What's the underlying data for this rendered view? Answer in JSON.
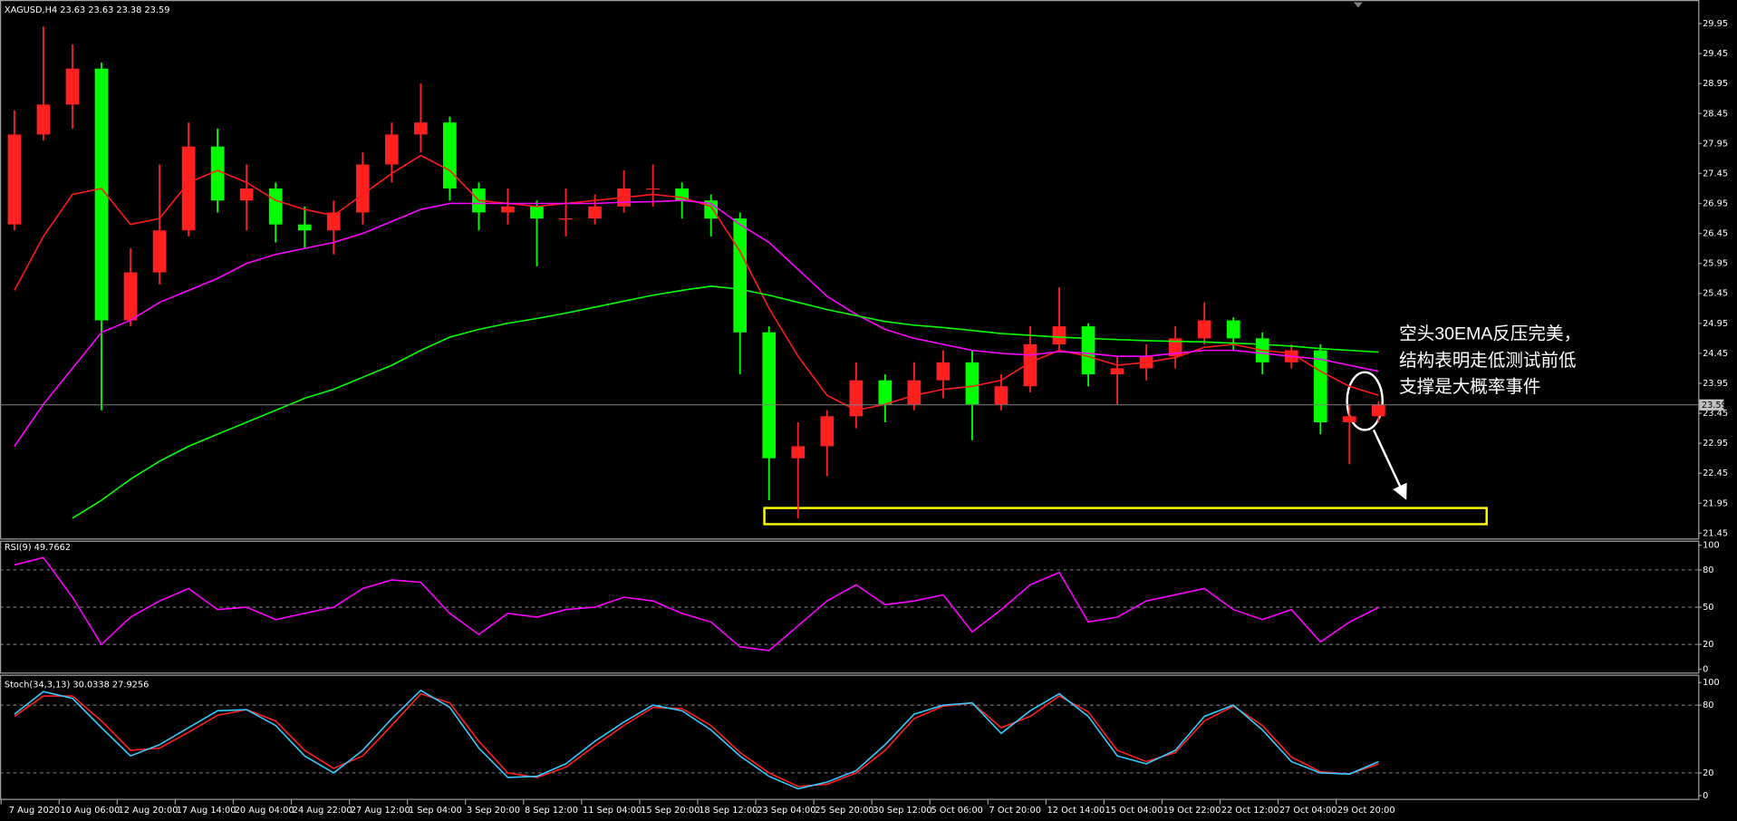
{
  "chart_data": [
    {
      "type": "candlestick",
      "title": "XAGUSD,H4  23.63 23.63 23.38 23.59",
      "categories": [
        "7 Aug 2020",
        null,
        "10 Aug 06:00",
        null,
        "12 Aug 20:00",
        null,
        "17 Aug 14:00",
        null,
        "20 Aug 04:00",
        null,
        "24 Aug 22:00",
        null,
        "27 Aug 12:00",
        null,
        "1 Sep 04:00",
        null,
        "3 Sep 20:00",
        null,
        "8 Sep 12:00",
        null,
        "11 Sep 04:00",
        null,
        "15 Sep 20:00",
        null,
        "18 Sep 12:00",
        null,
        "23 Sep 04:00",
        null,
        "25 Sep 20:00",
        null,
        "30 Sep 12:00",
        null,
        "5 Oct 06:00",
        null,
        "7 Oct 20:00",
        null,
        "12 Oct 14:00",
        null,
        "15 Oct 04:00",
        null,
        "19 Oct 22:00",
        null,
        "22 Oct 12:00",
        null,
        "27 Oct 04:00",
        null,
        "29 Oct 20:00",
        null
      ],
      "ohlc": [
        [
          26.6,
          28.5,
          26.5,
          28.1
        ],
        [
          28.1,
          29.9,
          28.0,
          28.6
        ],
        [
          28.6,
          29.6,
          28.2,
          29.2
        ],
        [
          29.2,
          29.3,
          23.5,
          25.0
        ],
        [
          25.0,
          26.2,
          24.9,
          25.8
        ],
        [
          25.8,
          27.6,
          25.6,
          26.5
        ],
        [
          26.5,
          28.3,
          26.4,
          27.9
        ],
        [
          27.9,
          28.2,
          26.8,
          27.0
        ],
        [
          27.0,
          27.6,
          26.5,
          27.2
        ],
        [
          27.2,
          27.3,
          26.3,
          26.6
        ],
        [
          26.6,
          26.9,
          26.2,
          26.5
        ],
        [
          26.5,
          27.0,
          26.1,
          26.8
        ],
        [
          26.8,
          27.8,
          26.6,
          27.6
        ],
        [
          27.6,
          28.3,
          27.3,
          28.1
        ],
        [
          28.1,
          28.95,
          27.8,
          28.3
        ],
        [
          28.3,
          28.4,
          27.0,
          27.2
        ],
        [
          27.2,
          27.3,
          26.5,
          26.8
        ],
        [
          26.8,
          27.2,
          26.6,
          26.9
        ],
        [
          26.9,
          27.0,
          25.9,
          26.7
        ],
        [
          26.7,
          27.2,
          26.4,
          26.7
        ],
        [
          26.7,
          27.1,
          26.6,
          26.9
        ],
        [
          26.9,
          27.5,
          26.8,
          27.2
        ],
        [
          27.2,
          27.6,
          26.9,
          27.2
        ],
        [
          27.2,
          27.3,
          26.7,
          27.0
        ],
        [
          27.0,
          27.1,
          26.4,
          26.7
        ],
        [
          26.7,
          26.8,
          24.1,
          24.8
        ],
        [
          24.8,
          24.9,
          22.0,
          22.7
        ],
        [
          22.7,
          23.3,
          21.7,
          22.9
        ],
        [
          22.9,
          23.5,
          22.4,
          23.4
        ],
        [
          23.4,
          24.3,
          23.2,
          24.0
        ],
        [
          24.0,
          24.1,
          23.3,
          23.6
        ],
        [
          23.6,
          24.3,
          23.5,
          24.0
        ],
        [
          24.0,
          24.5,
          23.7,
          24.3
        ],
        [
          24.3,
          24.5,
          23.0,
          23.6
        ],
        [
          23.6,
          24.1,
          23.5,
          23.9
        ],
        [
          23.9,
          24.9,
          23.8,
          24.6
        ],
        [
          24.6,
          25.55,
          24.5,
          24.9
        ],
        [
          24.9,
          24.95,
          23.9,
          24.1
        ],
        [
          24.1,
          24.4,
          23.6,
          24.2
        ],
        [
          24.2,
          24.6,
          24.0,
          24.4
        ],
        [
          24.4,
          24.9,
          24.2,
          24.7
        ],
        [
          24.7,
          25.3,
          24.6,
          25.0
        ],
        [
          25.0,
          25.05,
          24.5,
          24.7
        ],
        [
          24.7,
          24.8,
          24.1,
          24.3
        ],
        [
          24.3,
          24.6,
          24.2,
          24.5
        ],
        [
          24.5,
          24.6,
          23.1,
          23.3
        ],
        [
          23.3,
          23.6,
          22.6,
          23.4
        ],
        [
          23.4,
          23.65,
          23.3,
          23.59
        ]
      ],
      "up_color": "#ff2020",
      "down_color": "#00ff00",
      "series": [
        {
          "color": "#ff1a1a",
          "values": [
            25.5,
            26.4,
            27.1,
            27.2,
            26.6,
            26.7,
            27.3,
            27.5,
            27.3,
            27.0,
            26.85,
            26.75,
            27.1,
            27.45,
            27.75,
            27.5,
            27.0,
            26.95,
            26.9,
            26.95,
            27.0,
            27.05,
            27.1,
            27.05,
            26.9,
            26.15,
            25.2,
            24.4,
            23.75,
            23.5,
            23.6,
            23.75,
            23.85,
            23.9,
            24.0,
            24.3,
            24.5,
            24.4,
            24.25,
            24.3,
            24.38,
            24.55,
            24.6,
            24.5,
            24.45,
            24.15,
            23.9,
            23.75
          ]
        },
        {
          "color": "#ff00ff",
          "values": [
            22.9,
            23.6,
            24.2,
            24.8,
            25.0,
            25.3,
            25.5,
            25.7,
            25.95,
            26.1,
            26.2,
            26.3,
            26.45,
            26.65,
            26.85,
            26.95,
            26.95,
            26.95,
            26.95,
            26.95,
            26.95,
            26.97,
            26.98,
            27.0,
            26.95,
            26.6,
            26.3,
            25.85,
            25.4,
            25.1,
            24.85,
            24.7,
            24.6,
            24.5,
            24.45,
            24.42,
            24.48,
            24.45,
            24.4,
            24.4,
            24.45,
            24.5,
            24.5,
            24.45,
            24.4,
            24.35,
            24.25,
            24.15
          ]
        },
        {
          "color": "#00ff00",
          "values": [
            null,
            null,
            21.7,
            22.0,
            22.35,
            22.65,
            22.9,
            23.1,
            23.3,
            23.5,
            23.7,
            23.85,
            24.05,
            24.25,
            24.5,
            24.72,
            24.85,
            24.95,
            25.03,
            25.12,
            25.22,
            25.32,
            25.42,
            25.5,
            25.57,
            25.52,
            25.42,
            25.3,
            25.18,
            25.08,
            24.98,
            24.92,
            24.88,
            24.83,
            24.78,
            24.75,
            24.72,
            24.7,
            24.68,
            24.66,
            24.65,
            24.64,
            24.62,
            24.6,
            24.57,
            24.53,
            24.5,
            24.47
          ]
        }
      ],
      "current_price": 23.59,
      "support_zone": [
        21.6,
        21.87
      ],
      "annotation": [
        "空头30EMA反压完美，",
        "结构表明走低测试前低",
        "支撑是大概率事件"
      ],
      "ylim": [
        21.38,
        30.27
      ],
      "yticks": [
        21.45,
        21.95,
        22.45,
        22.95,
        23.45,
        23.95,
        24.45,
        24.95,
        25.45,
        25.95,
        26.45,
        26.95,
        27.45,
        27.95,
        28.45,
        28.95,
        29.45,
        29.95
      ]
    },
    {
      "type": "line",
      "title": "RSI(9) 49.7662",
      "series": [
        {
          "color": "#ff00ff",
          "values": [
            84,
            90,
            58,
            20,
            42,
            55,
            65,
            48,
            50,
            40,
            45,
            50,
            65,
            72,
            70,
            45,
            28,
            45,
            42,
            48,
            50,
            58,
            55,
            45,
            38,
            18,
            15,
            35,
            55,
            68,
            52,
            55,
            60,
            30,
            48,
            68,
            78,
            38,
            42,
            55,
            60,
            65,
            48,
            40,
            48,
            22,
            38,
            49.77
          ]
        }
      ],
      "ylim": [
        0,
        100
      ],
      "yticks": [
        0,
        20,
        50,
        80,
        100
      ],
      "levels": [
        20,
        50,
        80
      ]
    },
    {
      "type": "line",
      "title": "Stoch(34,3,13) 30.0338 27.9256",
      "series": [
        {
          "color": "#ff2020",
          "values": [
            70,
            88,
            88,
            66,
            40,
            42,
            56,
            71,
            76,
            66,
            40,
            24,
            35,
            62,
            90,
            82,
            48,
            20,
            16,
            25,
            44,
            62,
            78,
            77,
            62,
            38,
            20,
            8,
            10,
            20,
            40,
            68,
            79,
            82,
            60,
            70,
            88,
            74,
            40,
            30,
            38,
            66,
            79,
            62,
            34,
            21,
            19,
            27.93
          ]
        },
        {
          "color": "#33ccff",
          "values": [
            72,
            92,
            86,
            60,
            35,
            45,
            60,
            75,
            76,
            62,
            35,
            20,
            40,
            68,
            93,
            78,
            42,
            16,
            17,
            28,
            48,
            65,
            80,
            75,
            58,
            35,
            17,
            6,
            12,
            22,
            45,
            72,
            80,
            82,
            55,
            75,
            90,
            70,
            35,
            28,
            40,
            70,
            80,
            58,
            30,
            20,
            19,
            30.03
          ]
        }
      ],
      "ylim": [
        0,
        100
      ],
      "yticks": [
        0,
        20,
        80,
        100
      ],
      "levels": [
        20,
        80
      ]
    }
  ]
}
